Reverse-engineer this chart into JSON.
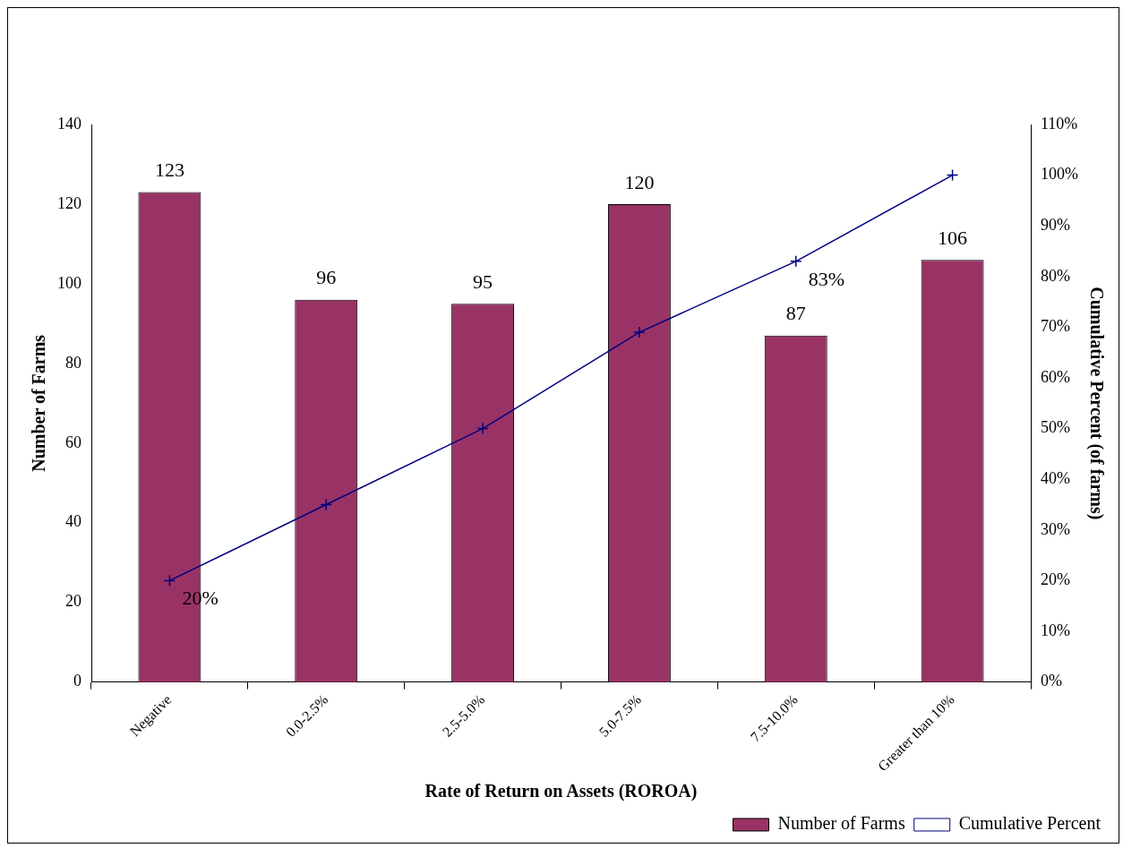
{
  "chart_data": {
    "type": "bar",
    "xlabel": "Rate of Return on Assets (ROROA)",
    "ylabel": "Number of Farms",
    "y2label": "Cumulative Percent (of farms)",
    "categories": [
      "Negative",
      "0.0-2.5%",
      "2.5-5.0%",
      "5.0-7.5%",
      "7.5-10.0%",
      "Greater than 10%"
    ],
    "series": [
      {
        "name": "Number of Farms",
        "color": "#993366",
        "values": [
          123,
          96,
          95,
          120,
          87,
          106
        ],
        "value_labels": [
          "123",
          "96",
          "95",
          "120",
          "87",
          "106"
        ]
      },
      {
        "name": "Cumulative Percent",
        "type": "line",
        "axis": "y2",
        "color": "#000080",
        "marker": "cross",
        "values": [
          20,
          35,
          50,
          69,
          83,
          100
        ],
        "value_labels": [
          "20%",
          null,
          null,
          null,
          "83%",
          null
        ]
      }
    ],
    "ylim": [
      0,
      140
    ],
    "yticks": [
      0,
      20,
      40,
      60,
      80,
      100,
      120,
      140
    ],
    "y2lim": [
      0,
      110
    ],
    "y2ticks": [
      {
        "value": 0,
        "label": "0%"
      },
      {
        "value": 10,
        "label": "10%"
      },
      {
        "value": 20,
        "label": "20%"
      },
      {
        "value": 30,
        "label": "30%"
      },
      {
        "value": 40,
        "label": "40%"
      },
      {
        "value": 50,
        "label": "50%"
      },
      {
        "value": 60,
        "label": "60%"
      },
      {
        "value": 70,
        "label": "70%"
      },
      {
        "value": 80,
        "label": "80%"
      },
      {
        "value": 90,
        "label": "90%"
      },
      {
        "value": 100,
        "label": "100%"
      },
      {
        "value": 110,
        "label": "110%"
      }
    ],
    "grid": false,
    "legend": "bottom right"
  }
}
